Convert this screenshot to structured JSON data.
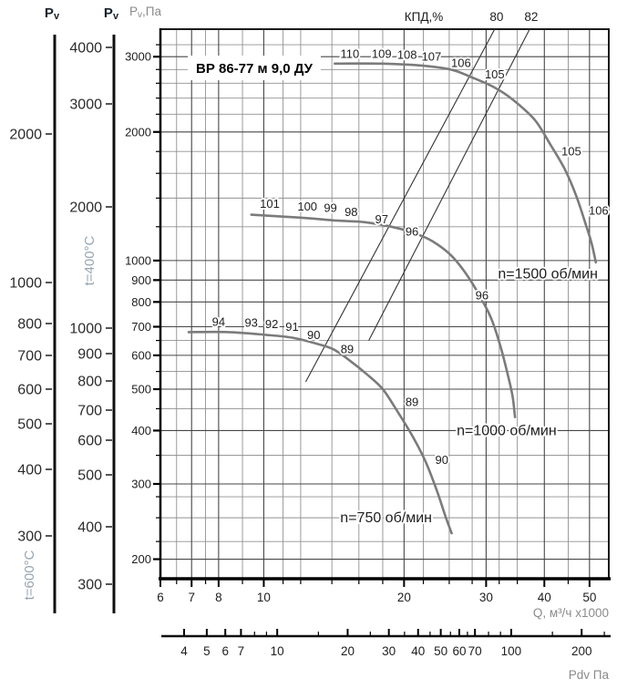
{
  "header": {
    "aux_pv_titles": [
      "Pv",
      "Pv"
    ],
    "main_axis_title": "Pv,Па"
  },
  "chart_data": {
    "type": "line",
    "title": "ВР 86-77 м 9,0 ДУ",
    "xlabel": "Q, м³/ч x1000",
    "ylabel": "Pv,Па",
    "xlim": [
      6,
      55
    ],
    "ylim": [
      180,
      3480
    ],
    "log_x": true,
    "log_y": true,
    "grid": "on",
    "x_major": [
      6,
      7,
      8,
      10,
      20,
      30,
      40,
      50
    ],
    "x_minor": [
      6.5,
      7.5,
      9,
      11,
      12,
      14,
      16,
      18,
      22,
      25,
      28,
      32,
      35,
      45
    ],
    "y_major": [
      3000,
      2000,
      1000,
      900,
      800,
      700,
      600,
      500,
      400,
      300,
      200
    ],
    "y_minor": [
      3200,
      2800,
      2600,
      2400,
      2200,
      1800,
      1600,
      1400,
      1200,
      650,
      550,
      450,
      350,
      280,
      250,
      220
    ],
    "series": [
      {
        "name": "n=1500 об/мин",
        "name_pos": [
          40.7,
          930
        ],
        "points": [
          [
            14.2,
            2890
          ],
          [
            18,
            2890
          ],
          [
            21.8,
            2860
          ],
          [
            25.2,
            2800
          ],
          [
            27.8,
            2690
          ],
          [
            31.3,
            2540
          ],
          [
            34.4,
            2370
          ],
          [
            38.2,
            2130
          ],
          [
            41.2,
            1870
          ],
          [
            44.2,
            1640
          ],
          [
            46.8,
            1420
          ],
          [
            48.9,
            1230
          ],
          [
            50.5,
            1100
          ],
          [
            51.6,
            990
          ]
        ],
        "point_labels": [
          {
            "t": "110",
            "q": 15.3,
            "p": 3050
          },
          {
            "t": "109",
            "q": 17.9,
            "p": 3050
          },
          {
            "t": "108",
            "q": 20.3,
            "p": 3030
          },
          {
            "t": "107",
            "q": 22.9,
            "p": 3000
          },
          {
            "t": "106",
            "q": 26.5,
            "p": 2900
          },
          {
            "t": "105",
            "q": 31.3,
            "p": 2730
          },
          {
            "t": "105",
            "q": 45.7,
            "p": 1800
          },
          {
            "t": "106",
            "q": 52.3,
            "p": 1310
          }
        ]
      },
      {
        "name": "n=1000 об/мин",
        "name_pos": [
          33.2,
          400
        ],
        "points": [
          [
            9.4,
            1280
          ],
          [
            12,
            1260
          ],
          [
            14.4,
            1240
          ],
          [
            16.4,
            1230
          ],
          [
            18.8,
            1200
          ],
          [
            21,
            1160
          ],
          [
            23,
            1110
          ],
          [
            25.2,
            1030
          ],
          [
            27.2,
            930
          ],
          [
            29,
            830
          ],
          [
            30.8,
            730
          ],
          [
            32.2,
            630
          ],
          [
            33.4,
            540
          ],
          [
            34.2,
            480
          ],
          [
            34.6,
            430
          ]
        ],
        "point_labels": [
          {
            "t": "101",
            "q": 10.3,
            "p": 1360
          },
          {
            "t": "100",
            "q": 12.4,
            "p": 1340
          },
          {
            "t": "99",
            "q": 13.9,
            "p": 1330
          },
          {
            "t": "98",
            "q": 15.4,
            "p": 1300
          },
          {
            "t": "97",
            "q": 17.9,
            "p": 1250
          },
          {
            "t": "96",
            "q": 20.8,
            "p": 1170
          },
          {
            "t": "96",
            "q": 29.4,
            "p": 830
          }
        ]
      },
      {
        "name": "n=750 об/мин",
        "name_pos": [
          18.3,
          250
        ],
        "points": [
          [
            6.9,
            680
          ],
          [
            8.4,
            680
          ],
          [
            10.1,
            670
          ],
          [
            11.5,
            660
          ],
          [
            12.9,
            640
          ],
          [
            14.1,
            620
          ],
          [
            15.4,
            580
          ],
          [
            16.7,
            540
          ],
          [
            18,
            500
          ],
          [
            19.2,
            450
          ],
          [
            20.8,
            390
          ],
          [
            22.2,
            340
          ],
          [
            23.5,
            290
          ],
          [
            24.6,
            250
          ],
          [
            25.3,
            230
          ]
        ],
        "point_labels": [
          {
            "t": "94",
            "q": 8.0,
            "p": 720
          },
          {
            "t": "93",
            "q": 9.4,
            "p": 715
          },
          {
            "t": "92",
            "q": 10.4,
            "p": 710
          },
          {
            "t": "91",
            "q": 11.5,
            "p": 700
          },
          {
            "t": "90",
            "q": 12.8,
            "p": 670
          },
          {
            "t": "89",
            "q": 15.1,
            "p": 620
          },
          {
            "t": "89",
            "q": 20.8,
            "p": 467
          },
          {
            "t": "90",
            "q": 24.1,
            "p": 342
          }
        ]
      }
    ],
    "efficiency": {
      "title": "КПД,%",
      "lines": [
        {
          "label": "80",
          "from": [
            12.3,
            520
          ],
          "to": [
            31.3,
            3480
          ],
          "label_q": 31.6
        },
        {
          "label": "82",
          "from": [
            16.8,
            650
          ],
          "to": [
            37.2,
            3480
          ],
          "label_q": 37.5
        }
      ]
    },
    "aux_axes": [
      {
        "title": "Pv",
        "temp_label": "t=600°C",
        "ticks": [
          2000,
          1000,
          800,
          700,
          600,
          500,
          400,
          300
        ]
      },
      {
        "title": "Pv",
        "temp_label": "t=400°C",
        "ticks": [
          4000,
          3000,
          2000,
          1000,
          900,
          800,
          700,
          600,
          500,
          400,
          300
        ]
      }
    ],
    "pdv_axis": {
      "label": "Pdv Па",
      "ticks": [
        4,
        5,
        6,
        7,
        10,
        20,
        30,
        40,
        50,
        60,
        70,
        100,
        200
      ],
      "minor": [
        8,
        9,
        15,
        25,
        35,
        45,
        55,
        65,
        80,
        90,
        150,
        250
      ]
    }
  },
  "colors": {
    "curve": "#7b7b7b",
    "grid_major": "#474747",
    "grid_minor": "#909090",
    "border": "#1a1a1a",
    "text_dark": "#1e1e1e",
    "text_gray": "#8a8a8a",
    "temp_label": "#97a5b2",
    "eff_line": "#333333",
    "header_pv": "#16202b"
  }
}
